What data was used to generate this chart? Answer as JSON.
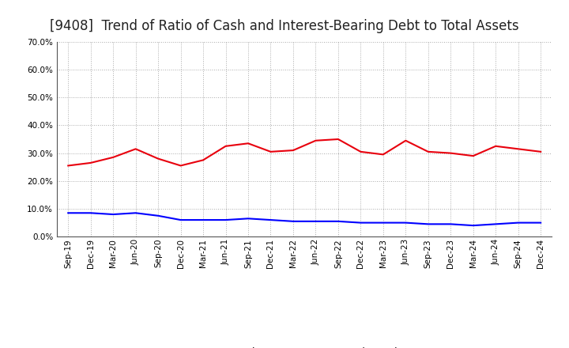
{
  "title": "[9408]  Trend of Ratio of Cash and Interest-Bearing Debt to Total Assets",
  "x_labels": [
    "Sep-19",
    "Dec-19",
    "Mar-20",
    "Jun-20",
    "Sep-20",
    "Dec-20",
    "Mar-21",
    "Jun-21",
    "Sep-21",
    "Dec-21",
    "Mar-22",
    "Jun-22",
    "Sep-22",
    "Dec-22",
    "Mar-23",
    "Jun-23",
    "Sep-23",
    "Dec-23",
    "Mar-24",
    "Jun-24",
    "Sep-24",
    "Dec-24"
  ],
  "cash": [
    25.5,
    26.5,
    28.5,
    31.5,
    28.0,
    25.5,
    27.5,
    32.5,
    33.5,
    30.5,
    31.0,
    34.5,
    35.0,
    30.5,
    29.5,
    34.5,
    30.5,
    30.0,
    29.0,
    32.5,
    31.5,
    30.5
  ],
  "interest_bearing_debt": [
    8.5,
    8.5,
    8.0,
    8.5,
    7.5,
    6.0,
    6.0,
    6.0,
    6.5,
    6.0,
    5.5,
    5.5,
    5.5,
    5.0,
    5.0,
    5.0,
    4.5,
    4.5,
    4.0,
    4.5,
    5.0,
    5.0
  ],
  "cash_color": "#e8000d",
  "debt_color": "#0000ff",
  "ylim": [
    0,
    70
  ],
  "yticks": [
    0,
    10,
    20,
    30,
    40,
    50,
    60,
    70
  ],
  "background_color": "#ffffff",
  "plot_bg_color": "#ffffff",
  "grid_color": "#aaaaaa",
  "title_fontsize": 12,
  "tick_fontsize": 7.5,
  "legend_labels": [
    "Cash",
    "Interest-Bearing Debt"
  ],
  "legend_fontsize": 9,
  "line_width": 1.5
}
